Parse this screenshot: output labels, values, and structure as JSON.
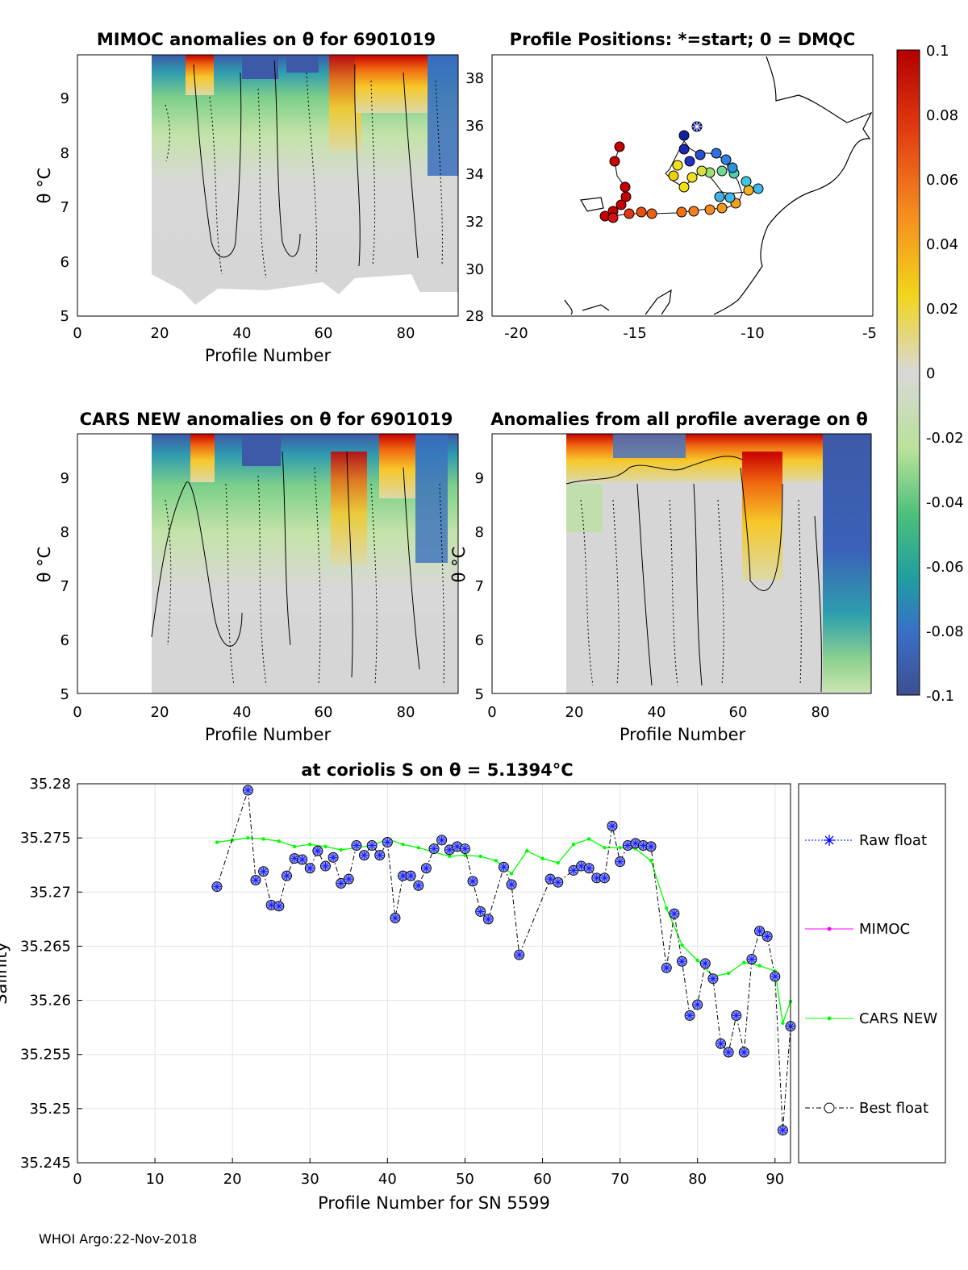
{
  "footer": "WHOI Argo:22-Nov-2018",
  "colorbar": {
    "ticks": [
      "0.1",
      "0.08",
      "0.06",
      "0.04",
      "0.02",
      "0",
      "-0.02",
      "-0.04",
      "-0.06",
      "-0.08",
      "-0.1"
    ],
    "range": [
      -0.1,
      0.1
    ]
  },
  "panels": {
    "mimoc": {
      "title": "MIMOC anomalies on θ  for 6901019",
      "xlabel": "Profile Number",
      "ylabel": "θ °C",
      "xticks": [
        "0",
        "20",
        "40",
        "60",
        "80"
      ],
      "yticks": [
        "5",
        "6",
        "7",
        "8",
        "9"
      ]
    },
    "map": {
      "title": "Profile Positions: *=start; 0 = DMQC",
      "xticks": [
        "-20",
        "-15",
        "-10",
        "-5"
      ],
      "yticks": [
        "28",
        "30",
        "32",
        "34",
        "36",
        "38"
      ]
    },
    "cars": {
      "title": "CARS NEW anomalies on θ for 6901019",
      "xlabel": "Profile Number",
      "ylabel": "θ °C",
      "xticks": [
        "0",
        "20",
        "40",
        "60",
        "80"
      ],
      "yticks": [
        "5",
        "6",
        "7",
        "8",
        "9"
      ]
    },
    "avg": {
      "title": "Anomalies from all profile average on θ",
      "xlabel": "Profile Number",
      "ylabel": "θ °C",
      "xticks": [
        "0",
        "20",
        "40",
        "60",
        "80"
      ],
      "yticks": [
        "5",
        "6",
        "7",
        "8",
        "9"
      ]
    }
  },
  "chart_data": {
    "type": "line",
    "title": "at coriolis S on θ = 5.1394°C",
    "xlabel": "Profile Number for SN 5599",
    "ylabel": "Salinity",
    "xlim": [
      0,
      92
    ],
    "ylim": [
      35.245,
      35.28
    ],
    "xticks": [
      "0",
      "10",
      "20",
      "30",
      "40",
      "50",
      "60",
      "70",
      "80",
      "90"
    ],
    "yticks": [
      "35.28",
      "35.275",
      "35.27",
      "35.265",
      "35.26",
      "35.255",
      "35.25",
      "35.245"
    ],
    "legend": [
      "Raw float",
      "MIMOC",
      "CARS NEW",
      "Best float"
    ],
    "legend_position": "outside-right",
    "series": [
      {
        "name": "Best float",
        "color": "#1a1aff",
        "x": [
          18,
          22,
          23,
          24,
          25,
          26,
          27,
          28,
          29,
          30,
          31,
          32,
          33,
          34,
          35,
          36,
          37,
          38,
          39,
          40,
          41,
          42,
          43,
          44,
          45,
          46,
          47,
          48,
          49,
          50,
          51,
          52,
          53,
          55,
          56,
          57,
          61,
          62,
          64,
          65,
          66,
          67,
          68,
          69,
          70,
          71,
          72,
          73,
          74,
          76,
          77,
          78,
          79,
          80,
          81,
          82,
          83,
          84,
          85,
          86,
          87,
          88,
          89,
          90,
          91,
          92
        ],
        "values": [
          35.2705,
          35.2794,
          35.2711,
          35.2719,
          35.2688,
          35.2687,
          35.2715,
          35.2731,
          35.273,
          35.2722,
          35.2738,
          35.2724,
          35.2732,
          35.2708,
          35.2712,
          35.2743,
          35.2734,
          35.2743,
          35.2734,
          35.2746,
          35.2676,
          35.2715,
          35.2715,
          35.2706,
          35.2722,
          35.274,
          35.2748,
          35.2739,
          35.2742,
          35.274,
          35.271,
          35.2682,
          35.2675,
          35.2723,
          35.2707,
          35.2642,
          35.2712,
          35.2709,
          35.272,
          35.2724,
          35.2722,
          35.2713,
          35.2713,
          35.2761,
          35.2728,
          35.2743,
          35.2745,
          35.2743,
          35.2742,
          35.263,
          35.268,
          35.2636,
          35.2586,
          35.2596,
          35.2634,
          35.262,
          35.256,
          35.2552,
          35.2586,
          35.2552,
          35.2638,
          35.2664,
          35.2659,
          35.2622,
          35.248,
          35.2576
        ]
      },
      {
        "name": "CARS NEW",
        "color": "#00ff00",
        "x": [
          18,
          20,
          22,
          24,
          26,
          28,
          30,
          32,
          34,
          36,
          38,
          40,
          42,
          44,
          46,
          48,
          50,
          52,
          54,
          56,
          58,
          60,
          62,
          64,
          66,
          68,
          70,
          72,
          74,
          76,
          78,
          80,
          82,
          84,
          86,
          88,
          90,
          91,
          92
        ],
        "values": [
          35.2746,
          35.2748,
          35.275,
          35.2749,
          35.2747,
          35.2742,
          35.2744,
          35.2742,
          35.2739,
          35.2741,
          35.2743,
          35.2749,
          35.2744,
          35.2741,
          35.2737,
          35.2733,
          35.2734,
          35.2733,
          35.2729,
          35.2717,
          35.2738,
          35.2731,
          35.2727,
          35.2744,
          35.2749,
          35.2741,
          35.2741,
          35.274,
          35.2729,
          35.2685,
          35.2651,
          35.2637,
          35.2622,
          35.2625,
          35.2635,
          35.2632,
          35.2627,
          35.2579,
          35.2599
        ]
      }
    ]
  }
}
